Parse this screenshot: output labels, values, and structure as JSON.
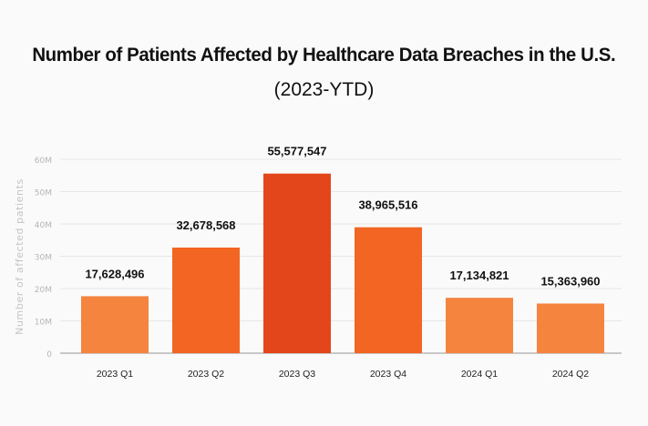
{
  "chart_data": {
    "type": "bar",
    "title": "Number of Patients Affected by Healthcare Data Breaches in the U.S.",
    "subtitle": "(2023-YTD)",
    "xlabel": "",
    "ylabel": "Number of affected patients",
    "categories": [
      "2023 Q1",
      "2023 Q2",
      "2023 Q3",
      "2023 Q4",
      "2024 Q1",
      "2024 Q2"
    ],
    "values": [
      17628496,
      32678568,
      55577547,
      38965516,
      17134821,
      15363960
    ],
    "data_labels": [
      "17,628,496",
      "32,678,568",
      "55,577,547",
      "38,965,516",
      "17,134,821",
      "15,363,960"
    ],
    "ylim": [
      0,
      60000000
    ],
    "yticks": [
      0,
      10000000,
      20000000,
      30000000,
      40000000,
      50000000,
      60000000
    ],
    "ytick_labels": [
      "0",
      "10M",
      "20M",
      "30M",
      "40M",
      "50M",
      "60M"
    ],
    "grid": true,
    "colors": [
      "#F5843F",
      "#F26522",
      "#E4461B",
      "#F26522",
      "#F5843F",
      "#F5843F"
    ]
  }
}
